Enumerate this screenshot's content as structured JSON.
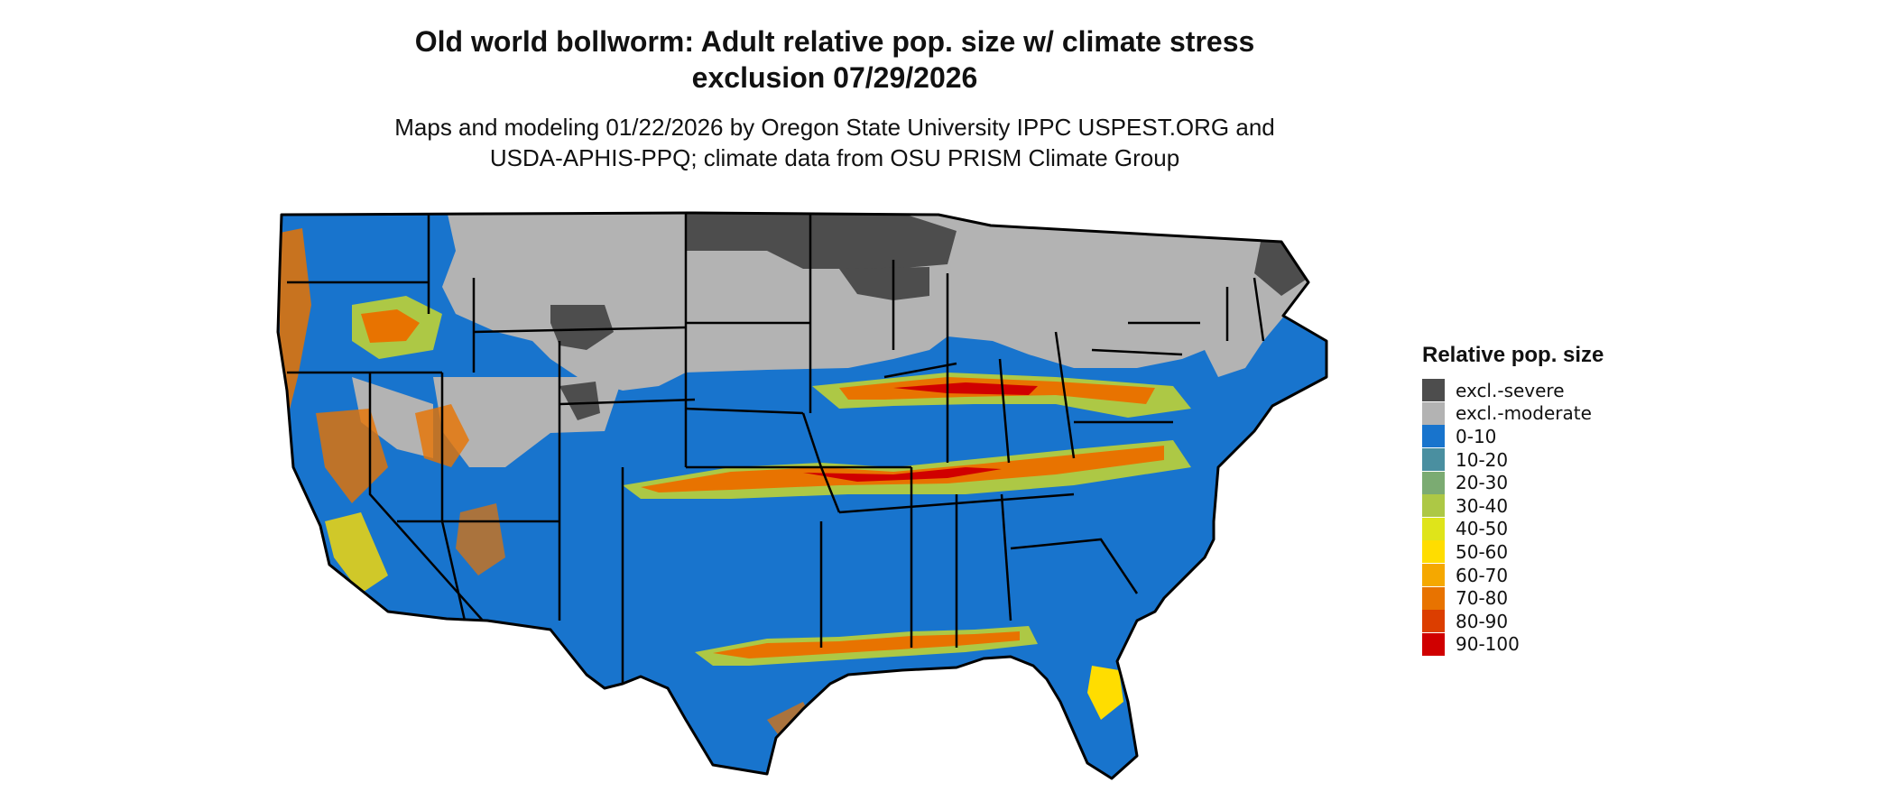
{
  "title_line1": "Old world bollworm: Adult relative pop. size w/ climate stress",
  "title_line2": "exclusion 07/29/2026",
  "subtitle_line1": "Maps and modeling 01/22/2026 by Oregon State University IPPC USPEST.ORG and",
  "subtitle_line2": "USDA-APHIS-PPQ; climate data from OSU PRISM Climate Group",
  "legend": {
    "title": "Relative pop. size",
    "items": [
      {
        "label": "excl.-severe",
        "color": "#4d4d4d"
      },
      {
        "label": "excl.-moderate",
        "color": "#b3b3b3"
      },
      {
        "label": "0-10",
        "color": "#1874cd"
      },
      {
        "label": "10-20",
        "color": "#4a8fa0"
      },
      {
        "label": "20-30",
        "color": "#7bab72"
      },
      {
        "label": "30-40",
        "color": "#adc845"
      },
      {
        "label": "40-50",
        "color": "#dfe41a"
      },
      {
        "label": "50-60",
        "color": "#ffdd00"
      },
      {
        "label": "60-70",
        "color": "#f5a800"
      },
      {
        "label": "70-80",
        "color": "#e87300"
      },
      {
        "label": "80-90",
        "color": "#dc3e00"
      },
      {
        "label": "90-100",
        "color": "#d00000"
      }
    ]
  }
}
